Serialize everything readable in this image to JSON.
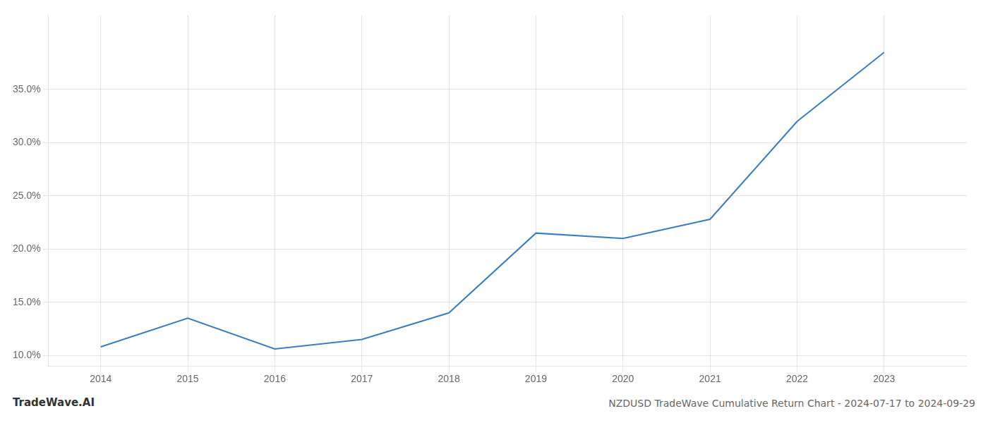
{
  "chart_data": {
    "type": "line",
    "title": "NZDUSD TradeWave Cumulative Return Chart - 2024-07-17 to 2024-09-29",
    "annotations": [
      "TradeWave.AI"
    ],
    "x": [
      2014,
      2015,
      2016,
      2017,
      2018,
      2019,
      2020,
      2021,
      2022,
      2023
    ],
    "values": [
      10.8,
      13.5,
      10.6,
      11.5,
      14.0,
      21.5,
      21.0,
      22.8,
      32.0,
      38.5
    ],
    "color": "#3a7ebf",
    "xlim": [
      2013.4,
      2023.95
    ],
    "xticks": [
      2014,
      2015,
      2016,
      2017,
      2018,
      2019,
      2020,
      2021,
      2022,
      2023
    ],
    "ylim": [
      9.0,
      42.0
    ],
    "yticks": [
      {
        "value": 10.0,
        "label": "10.0%"
      },
      {
        "value": 15.0,
        "label": "15.0%"
      },
      {
        "value": 20.0,
        "label": "20.0%"
      },
      {
        "value": 25.0,
        "label": "25.0%"
      },
      {
        "value": 30.0,
        "label": "30.0%"
      },
      {
        "value": 35.0,
        "label": "35.0%"
      }
    ],
    "grid": true
  }
}
